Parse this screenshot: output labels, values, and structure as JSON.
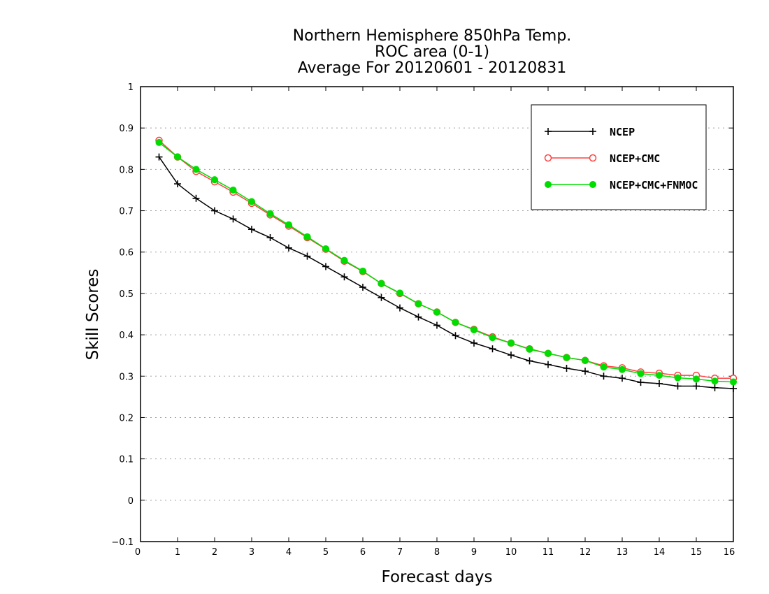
{
  "chart_data": {
    "type": "line",
    "title": [
      "Northern Hemisphere 850hPa Temp.",
      "ROC area (0-1)",
      "Average For 20120601 - 20120831"
    ],
    "xlabel": "Forecast days",
    "ylabel": "Skill Scores",
    "xlim": [
      0,
      16
    ],
    "ylim": [
      -0.1,
      1
    ],
    "xticks": [
      0,
      1,
      2,
      3,
      4,
      5,
      6,
      7,
      8,
      9,
      10,
      11,
      12,
      13,
      14,
      15,
      16
    ],
    "yticks": [
      -0.1,
      0,
      0.1,
      0.2,
      0.3,
      0.4,
      0.5,
      0.6,
      0.7,
      0.8,
      0.9,
      1
    ],
    "ytick_labels": [
      "−0.1",
      "0",
      "0.1",
      "0.2",
      "0.3",
      "0.4",
      "0.5",
      "0.6",
      "0.7",
      "0.8",
      "0.9",
      "1"
    ],
    "grid": true,
    "legend_position": "top-right",
    "x": [
      0.5,
      1,
      1.5,
      2,
      2.5,
      3,
      3.5,
      4,
      4.5,
      5,
      5.5,
      6,
      6.5,
      7,
      7.5,
      8,
      8.5,
      9,
      9.5,
      10,
      10.5,
      11,
      11.5,
      12,
      12.5,
      13,
      13.5,
      14,
      14.5,
      15,
      15.5,
      16
    ],
    "series": [
      {
        "name": "NCEP",
        "color": "#000000",
        "marker": "plus",
        "values": [
          0.83,
          0.765,
          0.73,
          0.7,
          0.68,
          0.655,
          0.635,
          0.61,
          0.59,
          0.565,
          0.54,
          0.515,
          0.49,
          0.465,
          0.443,
          0.423,
          0.398,
          0.38,
          0.366,
          0.351,
          0.337,
          0.328,
          0.319,
          0.312,
          0.3,
          0.295,
          0.285,
          0.282,
          0.276,
          0.276,
          0.272,
          0.27
        ]
      },
      {
        "name": "NCEP+CMC",
        "color": "#ff4040",
        "marker": "open-circle",
        "values": [
          0.87,
          0.83,
          0.795,
          0.77,
          0.745,
          0.718,
          0.69,
          0.663,
          0.635,
          0.607,
          0.578,
          0.553,
          0.524,
          0.5,
          0.475,
          0.455,
          0.43,
          0.413,
          0.395,
          0.38,
          0.366,
          0.355,
          0.345,
          0.338,
          0.325,
          0.32,
          0.31,
          0.307,
          0.302,
          0.302,
          0.295,
          0.295
        ]
      },
      {
        "name": "NCEP+CMC+FNMOC",
        "color": "#00dd00",
        "marker": "filled-circle",
        "values": [
          0.865,
          0.83,
          0.8,
          0.775,
          0.75,
          0.722,
          0.693,
          0.666,
          0.637,
          0.608,
          0.58,
          0.554,
          0.524,
          0.501,
          0.475,
          0.455,
          0.43,
          0.412,
          0.393,
          0.38,
          0.365,
          0.355,
          0.345,
          0.338,
          0.322,
          0.316,
          0.306,
          0.302,
          0.296,
          0.293,
          0.288,
          0.286
        ]
      }
    ]
  }
}
